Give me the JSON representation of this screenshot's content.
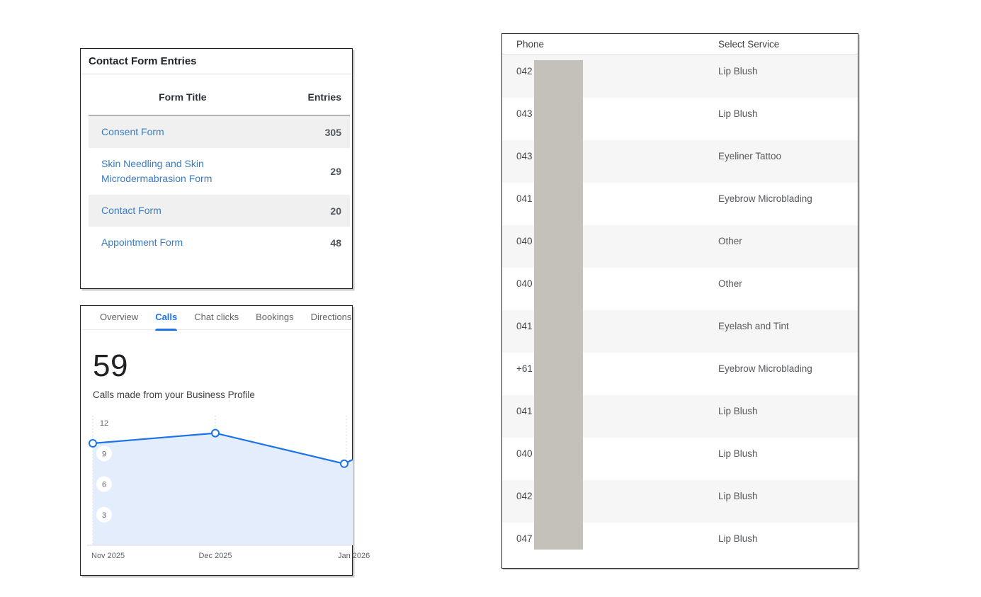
{
  "contact_form_entries": {
    "title": "Contact Form Entries",
    "columns": {
      "form_title": "Form Title",
      "entries": "Entries"
    },
    "rows": [
      {
        "form": "Consent Form",
        "entries": "305"
      },
      {
        "form": "Skin Needling and Skin Microdermabrasion Form",
        "entries": "29"
      },
      {
        "form": "Contact Form",
        "entries": "20"
      },
      {
        "form": "Appointment Form",
        "entries": "48"
      }
    ],
    "link_color": "#3a7bbf"
  },
  "calls_panel": {
    "tabs": [
      {
        "label": "Overview",
        "active": false
      },
      {
        "label": "Calls",
        "active": true
      },
      {
        "label": "Chat clicks",
        "active": false
      },
      {
        "label": "Bookings",
        "active": false
      },
      {
        "label": "Directions",
        "active": false
      }
    ],
    "metric_value": "59",
    "metric_caption": "Calls made from your Business Profile",
    "accent_color": "#1a73e8"
  },
  "service_table": {
    "columns": {
      "phone": "Phone",
      "service": "Select Service"
    },
    "rows": [
      {
        "phone": "042",
        "service": "Lip Blush"
      },
      {
        "phone": "043",
        "service": "Lip Blush"
      },
      {
        "phone": "043",
        "service": "Eyeliner Tattoo"
      },
      {
        "phone": "041",
        "service": "Eyebrow Microblading"
      },
      {
        "phone": "040",
        "service": "Other"
      },
      {
        "phone": "040",
        "service": "Other"
      },
      {
        "phone": "041",
        "service": "Eyelash and Tint"
      },
      {
        "phone": "+61",
        "service": "Eyebrow Microblading"
      },
      {
        "phone": "041",
        "service": "Lip Blush"
      },
      {
        "phone": "040",
        "service": "Lip Blush"
      },
      {
        "phone": "042",
        "service": "Lip Blush"
      },
      {
        "phone": "047",
        "service": "Lip Blush"
      }
    ],
    "redaction_color": "#c4c0ba"
  },
  "chart_data": {
    "type": "area",
    "title": "Calls made from your Business Profile",
    "categories": [
      "Nov 2025",
      "Dec 2025",
      "Jan 2026"
    ],
    "values": [
      10,
      11,
      8
    ],
    "edge_value": 8.4,
    "yticks": [
      3,
      6,
      9,
      12
    ],
    "ylim": [
      0,
      13.4
    ],
    "xlabel": "",
    "ylabel": "",
    "grid": "vertical-dotted",
    "legend": "none",
    "line_color": "#1a73e8",
    "fill_color": "#e4edfb",
    "gridline_color": "#c9ccd1",
    "axis_color": "#e0e0e0",
    "tick_text_color": "#5f6368"
  }
}
